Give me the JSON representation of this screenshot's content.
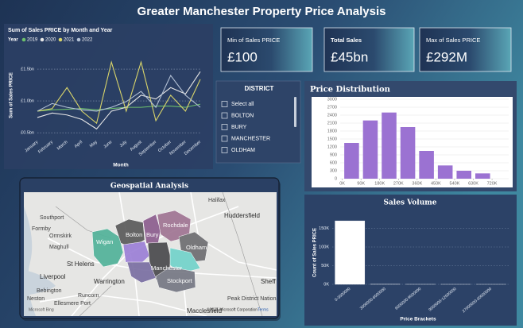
{
  "header": {
    "title": "Greater Manchester Property Price Analysis"
  },
  "chart_data": [
    {
      "type": "line",
      "title": "Sum of Sales PRICE by Month and Year",
      "legend_title": "Year",
      "legend_position": "top",
      "x_label": "Month",
      "y_label": "Sum of Sales PRICE",
      "categories": [
        "January",
        "February",
        "March",
        "April",
        "May",
        "June",
        "July",
        "August",
        "September",
        "October",
        "November",
        "December"
      ],
      "series": [
        {
          "name": "2019",
          "color": "#6cbf6c",
          "values": [
            840000000,
            860000000,
            870000000,
            880000000,
            860000000,
            880000000,
            900000000,
            900000000,
            920000000,
            920000000,
            900000000,
            950000000
          ]
        },
        {
          "name": "2020",
          "color": "#e6e6e6",
          "values": [
            740000000,
            810000000,
            780000000,
            710000000,
            560000000,
            840000000,
            900000000,
            1090000000,
            1030000000,
            1210000000,
            1110000000,
            1460000000
          ]
        },
        {
          "name": "2021",
          "color": "#d8d46a",
          "values": [
            840000000,
            880000000,
            1210000000,
            840000000,
            650000000,
            1610000000,
            840000000,
            1610000000,
            690000000,
            1090000000,
            840000000,
            1340000000
          ]
        },
        {
          "name": "2022",
          "color": "#b4c2d6",
          "values": [
            840000000,
            960000000,
            900000000,
            860000000,
            840000000,
            900000000,
            990000000,
            1150000000,
            900000000,
            1400000000,
            1090000000,
            900000000
          ]
        }
      ],
      "ylim": [
        440000000,
        1650000000
      ],
      "yticks": [
        {
          "value": 500000000,
          "label": "£0.5bn"
        },
        {
          "value": 1000000000,
          "label": "£1.0bn"
        },
        {
          "value": 1500000000,
          "label": "£1.5bn"
        }
      ],
      "grid": true
    },
    {
      "type": "histogram",
      "title": "Price Distribution",
      "bins": [
        0,
        90000,
        180000,
        270000,
        360000,
        450000,
        540000,
        630000,
        720000
      ],
      "values": [
        1350,
        2200,
        2500,
        1950,
        1050,
        500,
        300,
        200
      ],
      "color": "#9b72d2",
      "xlim": [
        -10000,
        800000
      ],
      "xticks": [
        {
          "value": 0,
          "label": "0K"
        },
        {
          "value": 90000,
          "label": "90K"
        },
        {
          "value": 180000,
          "label": "180K"
        },
        {
          "value": 270000,
          "label": "270K"
        },
        {
          "value": 360000,
          "label": "360K"
        },
        {
          "value": 450000,
          "label": "450K"
        },
        {
          "value": 540000,
          "label": "540K"
        },
        {
          "value": 630000,
          "label": "630K"
        },
        {
          "value": 720000,
          "label": "720K"
        }
      ],
      "ylim": [
        0,
        3000
      ],
      "yticks": [
        0,
        300,
        600,
        900,
        1200,
        1500,
        1800,
        2100,
        2400,
        2700,
        3000
      ],
      "grid": true
    },
    {
      "type": "bar",
      "title": "Sales Volume",
      "x_label": "Price Brackets",
      "y_label": "Count of Sales PRICE",
      "categories": [
        "0-3000000",
        "3000000-6000000",
        "6000000-9000000",
        "9000000-12000000",
        "27000000-30000000"
      ],
      "values": [
        170000,
        200,
        50,
        10,
        5
      ],
      "color": "#ffffff",
      "ylim": [
        0,
        183000
      ],
      "yticks": [
        {
          "value": 0,
          "label": "0K"
        },
        {
          "value": 50000,
          "label": "50K"
        },
        {
          "value": 100000,
          "label": "100K"
        },
        {
          "value": 150000,
          "label": "150K"
        }
      ],
      "grid": true
    }
  ],
  "cards": [
    {
      "label": "Min of Sales PRICE",
      "value": "£100"
    },
    {
      "label": "Total Sales",
      "value": "£45bn"
    },
    {
      "label": "Max of Sales PRICE",
      "value": "£292M"
    }
  ],
  "slicer": {
    "title": "DISTRICT",
    "items": [
      "Select all",
      "BOLTON",
      "BURY",
      "MANCHESTER",
      "OLDHAM"
    ]
  },
  "map": {
    "title": "Geospatial Analysis",
    "labels": [
      "Halifax",
      "Huddersfield",
      "Southport",
      "Formby",
      "Ormskirk",
      "Maghull",
      "St Helens",
      "Liverpool",
      "Warrington",
      "Bebington",
      "Neston",
      "Ellesmere Port",
      "Runcorn",
      "Macclesfield",
      "Peak District National Park",
      "Sheff"
    ],
    "districts": [
      "Wigan",
      "Bolton",
      "Bury",
      "Rochdale",
      "Oldham",
      "Manchester",
      "Stockport"
    ],
    "attribution": "©2025 Microsoft Corporation",
    "terms": "Terms",
    "logo": "Microsoft Bing"
  }
}
